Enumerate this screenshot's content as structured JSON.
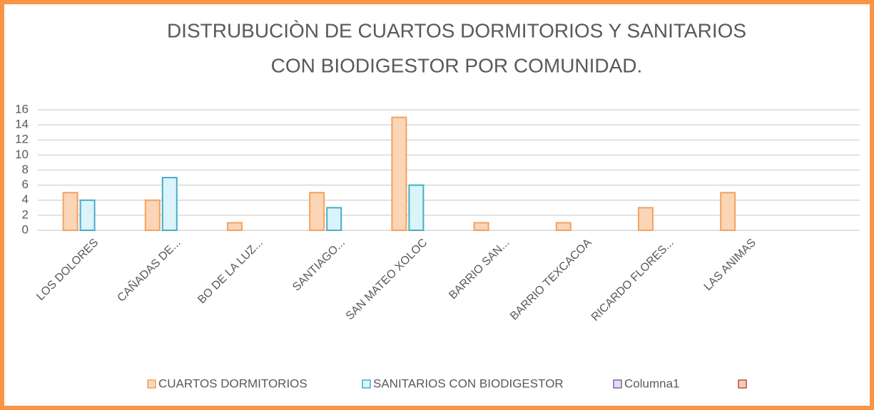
{
  "chart_data": {
    "type": "bar",
    "title": [
      "DISTRUBUCIÒN DE CUARTOS DORMITORIOS Y SANITARIOS",
      "CON BIODIGESTOR POR COMUNIDAD."
    ],
    "categories": [
      "LOS DOLORES",
      "CAÑADAS DE...",
      "BO DE LA LUZ...",
      "SANTIAGO...",
      "SAN MATEO XOLOC",
      "BARRIO SAN...",
      "BARRIO TEXCACOA",
      "RICARDO FLORES...",
      "LAS ANIMAS",
      null
    ],
    "series": [
      {
        "name": "CUARTOS DORMITORIOS",
        "color": "#fbd5b5",
        "stroke": "#f4a261",
        "values": [
          5,
          4,
          1,
          5,
          15,
          1,
          1,
          3,
          5,
          null
        ]
      },
      {
        "name": "SANITARIOS CON BIODIGESTOR",
        "color": "#dbf3fa",
        "stroke": "#4bacc6",
        "values": [
          4,
          7,
          null,
          3,
          6,
          null,
          null,
          null,
          null,
          null
        ]
      },
      {
        "name": "Columna1",
        "color": "#e4dcf0",
        "stroke": "#8064a2",
        "values": [
          null,
          null,
          null,
          null,
          null,
          null,
          null,
          null,
          null,
          null
        ]
      },
      {
        "color": "#f8cbad",
        "stroke": "#c0504d",
        "values": [
          null,
          null,
          null,
          null,
          null,
          null,
          null,
          null,
          null,
          null
        ]
      }
    ],
    "ylim": [
      0,
      16
    ],
    "yticks": [
      0,
      2,
      4,
      6,
      8,
      10,
      12,
      14,
      16
    ],
    "grid": true,
    "legend": "bottom"
  }
}
